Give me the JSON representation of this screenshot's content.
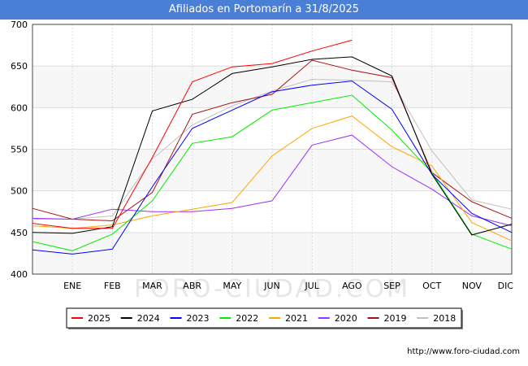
{
  "title": "Afiliados en Portomarín a 31/8/2025",
  "watermark": "FORO-CIUDAD.COM",
  "footer": "http://www.foro-ciudad.com",
  "chart_data": {
    "type": "line",
    "categories": [
      "",
      "ENE",
      "FEB",
      "MAR",
      "ABR",
      "MAY",
      "JUN",
      "JUL",
      "AGO",
      "SEP",
      "OCT",
      "NOV",
      "DIC"
    ],
    "ylim": [
      400,
      700
    ],
    "yticks": [
      400,
      450,
      500,
      550,
      600,
      650,
      700
    ],
    "grid": true,
    "legend_position": "bottom",
    "series": [
      {
        "name": "2025",
        "color": "#ff0000",
        "values": [
          461,
          455,
          455,
          540,
          631,
          649,
          653,
          668,
          681,
          null,
          null,
          null,
          null
        ]
      },
      {
        "name": "2024",
        "color": "#000000",
        "values": [
          450,
          449,
          457,
          596,
          610,
          641,
          649,
          658,
          661,
          638,
          520,
          447,
          460
        ]
      },
      {
        "name": "2023",
        "color": "#0000ff",
        "values": [
          429,
          424,
          430,
          505,
          575,
          597,
          619,
          627,
          632,
          598,
          520,
          473,
          450
        ]
      },
      {
        "name": "2022",
        "color": "#00ee00",
        "values": [
          439,
          428,
          448,
          488,
          557,
          565,
          597,
          606,
          615,
          573,
          522,
          448,
          430
        ]
      },
      {
        "name": "2021",
        "color": "#ffa500",
        "values": [
          458,
          455,
          459,
          470,
          478,
          486,
          542,
          575,
          590,
          553,
          530,
          462,
          440
        ]
      },
      {
        "name": "2020",
        "color": "#9b30ff",
        "values": [
          467,
          466,
          478,
          475,
          475,
          479,
          488,
          555,
          567,
          529,
          502,
          470,
          458
        ]
      },
      {
        "name": "2019",
        "color": "#aa1111",
        "values": [
          479,
          466,
          464,
          498,
          592,
          606,
          616,
          657,
          645,
          636,
          522,
          487,
          467
        ]
      },
      {
        "name": "2018",
        "color": "#c0c0c0",
        "values": [
          466,
          466,
          470,
          538,
          579,
          602,
          620,
          634,
          633,
          631,
          548,
          489,
          478
        ]
      }
    ]
  }
}
